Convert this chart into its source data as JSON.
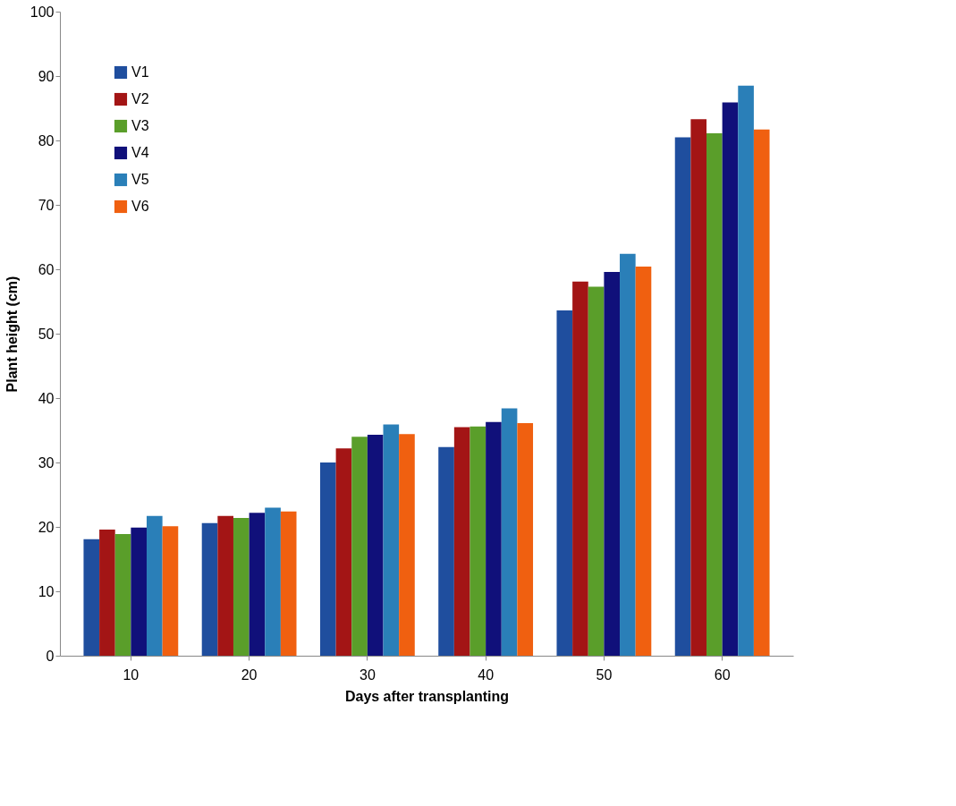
{
  "chart_data": {
    "type": "bar",
    "xlabel": "Days after transplanting",
    "ylabel": "Plant height (cm)",
    "categories": [
      "10",
      "20",
      "30",
      "40",
      "50",
      "60"
    ],
    "series": [
      {
        "name": "V1",
        "color": "#1f4e9e",
        "values": [
          18.1,
          20.6,
          30.0,
          32.4,
          53.6,
          80.5
        ]
      },
      {
        "name": "V2",
        "color": "#a31515",
        "values": [
          19.6,
          21.7,
          32.2,
          35.5,
          58.1,
          83.3
        ]
      },
      {
        "name": "V3",
        "color": "#5a9e2a",
        "values": [
          18.9,
          21.4,
          34.0,
          35.6,
          57.3,
          81.1
        ]
      },
      {
        "name": "V4",
        "color": "#10107a",
        "values": [
          19.9,
          22.2,
          34.3,
          36.3,
          59.6,
          85.9
        ]
      },
      {
        "name": "V5",
        "color": "#2a7fb8",
        "values": [
          21.7,
          23.0,
          35.9,
          38.4,
          62.4,
          88.5
        ]
      },
      {
        "name": "V6",
        "color": "#f06010",
        "values": [
          20.1,
          22.4,
          34.4,
          36.1,
          60.4,
          81.7
        ]
      }
    ],
    "ylim": [
      0,
      100
    ],
    "yticks": [
      0,
      10,
      20,
      30,
      40,
      50,
      60,
      70,
      80,
      90,
      100
    ],
    "grid": false,
    "legend": "top left"
  }
}
